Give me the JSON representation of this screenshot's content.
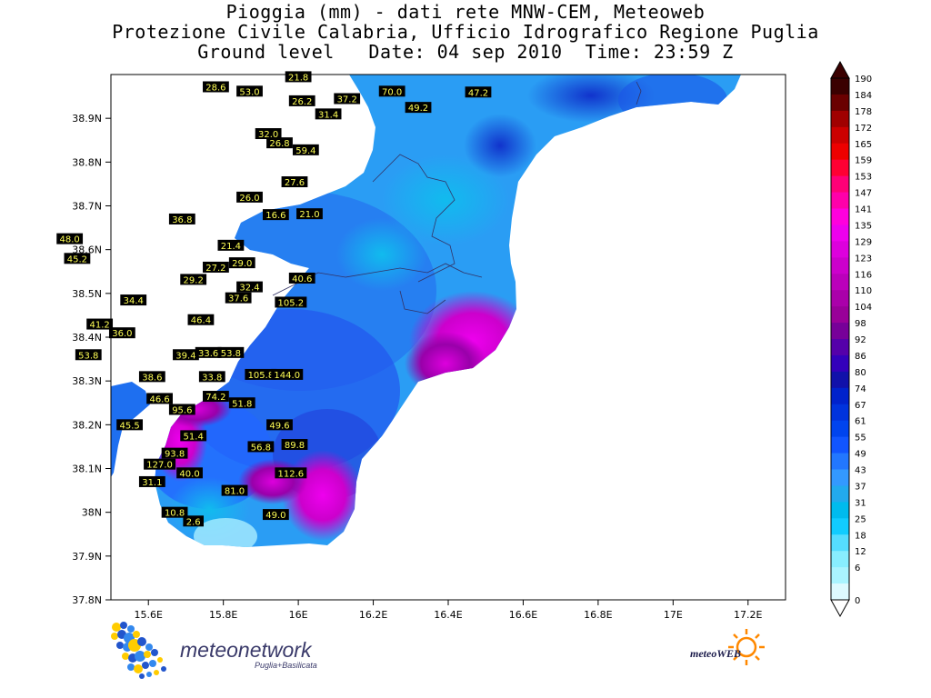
{
  "title": {
    "line1": "Pioggia (mm) - dati rete MNW-CEM, Meteoweb",
    "line2": "Protezione Civile Calabria, Ufficio Idrografico Regione Puglia",
    "line3": "Ground level   Date: 04 sep 2010  Time: 23:59 Z"
  },
  "axes": {
    "lon_range": [
      15.5,
      17.3
    ],
    "lat_range": [
      37.8,
      39.0
    ],
    "x_ticks": [
      "15.6E",
      "15.8E",
      "16E",
      "16.2E",
      "16.4E",
      "16.6E",
      "16.8E",
      "17E",
      "17.2E"
    ],
    "y_ticks": [
      "38.9N",
      "38.8N",
      "38.7N",
      "38.6N",
      "38.5N",
      "38.4N",
      "38.3N",
      "38.2N",
      "38.1N",
      "38N",
      "37.9N",
      "37.8N"
    ]
  },
  "colorbar": {
    "labels": [
      "190",
      "184",
      "178",
      "172",
      "165",
      "159",
      "153",
      "147",
      "141",
      "135",
      "129",
      "123",
      "116",
      "110",
      "104",
      "98",
      "92",
      "86",
      "80",
      "74",
      "67",
      "61",
      "55",
      "49",
      "43",
      "37",
      "31",
      "25",
      "18",
      "12",
      "6",
      "0"
    ],
    "colors": [
      "#3a0000",
      "#6a0000",
      "#a00000",
      "#cc0000",
      "#ee0000",
      "#ff0033",
      "#ff0077",
      "#ff00aa",
      "#ff00dd",
      "#ee00ee",
      "#dd00dd",
      "#cc00cc",
      "#bb00bb",
      "#aa00aa",
      "#990099",
      "#770099",
      "#5500aa",
      "#3300bb",
      "#1111aa",
      "#0022cc",
      "#0033dd",
      "#0044ee",
      "#1155ff",
      "#2277ff",
      "#3399ff",
      "#22aaee",
      "#00bbee",
      "#11ccff",
      "#55ddff",
      "#88eeff",
      "#aaf4ff",
      "#ddfaff"
    ]
  },
  "stations": [
    {
      "v": "28.6",
      "lon": 15.78,
      "lat": 38.972
    },
    {
      "v": "53.0",
      "lon": 15.87,
      "lat": 38.962
    },
    {
      "v": "21.8",
      "lon": 16.0,
      "lat": 38.995
    },
    {
      "v": "26.2",
      "lon": 16.01,
      "lat": 38.94
    },
    {
      "v": "37.2",
      "lon": 16.13,
      "lat": 38.945
    },
    {
      "v": "70.0",
      "lon": 16.25,
      "lat": 38.962
    },
    {
      "v": "49.2",
      "lon": 16.32,
      "lat": 38.925
    },
    {
      "v": "47.2",
      "lon": 16.48,
      "lat": 38.96
    },
    {
      "v": "31.4",
      "lon": 16.08,
      "lat": 38.91
    },
    {
      "v": "32.0",
      "lon": 15.92,
      "lat": 38.865
    },
    {
      "v": "26.8",
      "lon": 15.95,
      "lat": 38.844
    },
    {
      "v": "59.4",
      "lon": 16.02,
      "lat": 38.828
    },
    {
      "v": "27.6",
      "lon": 15.99,
      "lat": 38.755
    },
    {
      "v": "26.0",
      "lon": 15.87,
      "lat": 38.72
    },
    {
      "v": "16.6",
      "lon": 15.94,
      "lat": 38.68
    },
    {
      "v": "21.0",
      "lon": 16.03,
      "lat": 38.682
    },
    {
      "v": "36.8",
      "lon": 15.69,
      "lat": 38.67
    },
    {
      "v": "48.0",
      "lon": 15.39,
      "lat": 38.625
    },
    {
      "v": "21.4",
      "lon": 15.82,
      "lat": 38.61
    },
    {
      "v": "45.2",
      "lon": 15.41,
      "lat": 38.58
    },
    {
      "v": "29.0",
      "lon": 15.85,
      "lat": 38.57
    },
    {
      "v": "27.2",
      "lon": 15.78,
      "lat": 38.56
    },
    {
      "v": "29.2",
      "lon": 15.72,
      "lat": 38.532
    },
    {
      "v": "40.6",
      "lon": 16.01,
      "lat": 38.535
    },
    {
      "v": "32.4",
      "lon": 15.87,
      "lat": 38.515
    },
    {
      "v": "37.6",
      "lon": 15.84,
      "lat": 38.49
    },
    {
      "v": "34.4",
      "lon": 15.56,
      "lat": 38.485
    },
    {
      "v": "105.2",
      "lon": 15.98,
      "lat": 38.48
    },
    {
      "v": "46.4",
      "lon": 15.74,
      "lat": 38.44
    },
    {
      "v": "41.2",
      "lon": 15.47,
      "lat": 38.43
    },
    {
      "v": "36.0",
      "lon": 15.53,
      "lat": 38.41
    },
    {
      "v": "53.8",
      "lon": 15.44,
      "lat": 38.36
    },
    {
      "v": "39.4",
      "lon": 15.7,
      "lat": 38.36
    },
    {
      "v": "33.6",
      "lon": 15.76,
      "lat": 38.365
    },
    {
      "v": "53.8",
      "lon": 15.82,
      "lat": 38.365
    },
    {
      "v": "38.6",
      "lon": 15.61,
      "lat": 38.31
    },
    {
      "v": "33.8",
      "lon": 15.77,
      "lat": 38.31
    },
    {
      "v": "105.8",
      "lon": 15.9,
      "lat": 38.315
    },
    {
      "v": "144.0",
      "lon": 15.97,
      "lat": 38.315
    },
    {
      "v": "46.6",
      "lon": 15.63,
      "lat": 38.26
    },
    {
      "v": "74.2",
      "lon": 15.78,
      "lat": 38.265
    },
    {
      "v": "51.8",
      "lon": 15.85,
      "lat": 38.25
    },
    {
      "v": "95.6",
      "lon": 15.69,
      "lat": 38.235
    },
    {
      "v": "45.5",
      "lon": 15.55,
      "lat": 38.2
    },
    {
      "v": "49.6",
      "lon": 15.95,
      "lat": 38.2
    },
    {
      "v": "51.4",
      "lon": 15.72,
      "lat": 38.175
    },
    {
      "v": "89.8",
      "lon": 15.99,
      "lat": 38.155
    },
    {
      "v": "56.8",
      "lon": 15.9,
      "lat": 38.15
    },
    {
      "v": "93.8",
      "lon": 15.67,
      "lat": 38.135
    },
    {
      "v": "127.0",
      "lon": 15.63,
      "lat": 38.11
    },
    {
      "v": "112.6",
      "lon": 15.98,
      "lat": 38.09
    },
    {
      "v": "40.0",
      "lon": 15.71,
      "lat": 38.09
    },
    {
      "v": "31.1",
      "lon": 15.61,
      "lat": 38.07
    },
    {
      "v": "81.0",
      "lon": 15.83,
      "lat": 38.05
    },
    {
      "v": "10.8",
      "lon": 15.67,
      "lat": 38.0
    },
    {
      "v": "2.6",
      "lon": 15.72,
      "lat": 37.98
    },
    {
      "v": "49.0",
      "lon": 15.94,
      "lat": 37.995
    }
  ],
  "logos": {
    "meteonetwork": "meteonetwork",
    "meteonetwork_sub": "Puglia+Basilicata",
    "meteoweb": "meteoWEB"
  }
}
